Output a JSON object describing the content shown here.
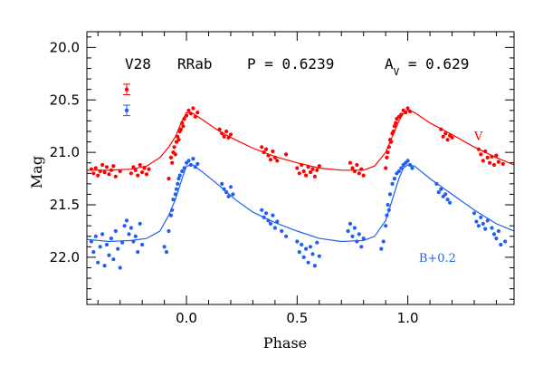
{
  "chart_data": {
    "type": "scatter",
    "title": {
      "star": "V28",
      "type": "RRab",
      "period": "P = 0.6239",
      "amp_base": "A",
      "amp_sub": "V",
      "amp_value": " = 0.629"
    },
    "xlabel": "Phase",
    "ylabel": "Mag",
    "xlim": [
      -0.45,
      1.48
    ],
    "ylim": [
      22.45,
      19.85
    ],
    "x_ticks": [
      {
        "value": 0.0,
        "label": "0.0"
      },
      {
        "value": 0.5,
        "label": "0.5"
      },
      {
        "value": 1.0,
        "label": "1.0"
      }
    ],
    "y_ticks": [
      {
        "value": 20.0,
        "label": "20.0"
      },
      {
        "value": 20.5,
        "label": "20.5"
      },
      {
        "value": 21.0,
        "label": "21.0"
      },
      {
        "value": 21.5,
        "label": "21.5"
      },
      {
        "value": 22.0,
        "label": "22.0"
      }
    ],
    "error_bars": [
      {
        "series": "V",
        "x": -0.27,
        "y": 20.4,
        "err": 0.05
      },
      {
        "series": "B",
        "x": -0.27,
        "y": 20.6,
        "err": 0.05
      }
    ],
    "series": [
      {
        "name": "V",
        "color": "#ff0000",
        "label_x": 1.3,
        "label_y": 20.84,
        "curve": [
          [
            -0.45,
            21.17
          ],
          [
            -0.35,
            21.17
          ],
          [
            -0.25,
            21.16
          ],
          [
            -0.18,
            21.13
          ],
          [
            -0.12,
            21.05
          ],
          [
            -0.08,
            20.95
          ],
          [
            -0.05,
            20.85
          ],
          [
            -0.02,
            20.7
          ],
          [
            0.0,
            20.62
          ],
          [
            0.03,
            20.63
          ],
          [
            0.08,
            20.7
          ],
          [
            0.15,
            20.8
          ],
          [
            0.22,
            20.88
          ],
          [
            0.3,
            20.96
          ],
          [
            0.4,
            21.04
          ],
          [
            0.5,
            21.1
          ],
          [
            0.6,
            21.15
          ],
          [
            0.7,
            21.17
          ],
          [
            0.8,
            21.17
          ],
          [
            0.85,
            21.13
          ],
          [
            0.9,
            21.0
          ],
          [
            0.93,
            20.85
          ],
          [
            0.96,
            20.7
          ],
          [
            0.98,
            20.63
          ],
          [
            1.0,
            20.6
          ],
          [
            1.03,
            20.62
          ],
          [
            1.1,
            20.72
          ],
          [
            1.2,
            20.83
          ],
          [
            1.3,
            20.95
          ],
          [
            1.4,
            21.05
          ],
          [
            1.48,
            21.12
          ]
        ],
        "points": [
          [
            -0.43,
            21.16
          ],
          [
            -0.42,
            21.2
          ],
          [
            -0.41,
            21.15
          ],
          [
            -0.4,
            21.22
          ],
          [
            -0.39,
            21.18
          ],
          [
            -0.38,
            21.12
          ],
          [
            -0.37,
            21.19
          ],
          [
            -0.36,
            21.14
          ],
          [
            -0.35,
            21.21
          ],
          [
            -0.34,
            21.17
          ],
          [
            -0.33,
            21.13
          ],
          [
            -0.32,
            21.23
          ],
          [
            -0.3,
            21.18
          ],
          [
            -0.25,
            21.2
          ],
          [
            -0.24,
            21.14
          ],
          [
            -0.23,
            21.17
          ],
          [
            -0.22,
            21.22
          ],
          [
            -0.21,
            21.12
          ],
          [
            -0.2,
            21.19
          ],
          [
            -0.19,
            21.15
          ],
          [
            -0.18,
            21.21
          ],
          [
            -0.17,
            21.16
          ],
          [
            -0.08,
            21.25
          ],
          [
            -0.07,
            21.05
          ],
          [
            -0.065,
            21.1
          ],
          [
            -0.06,
            21.0
          ],
          [
            -0.055,
            20.95
          ],
          [
            -0.05,
            21.02
          ],
          [
            -0.045,
            20.9
          ],
          [
            -0.04,
            20.85
          ],
          [
            -0.035,
            20.88
          ],
          [
            -0.03,
            20.8
          ],
          [
            -0.025,
            20.78
          ],
          [
            -0.02,
            20.72
          ],
          [
            -0.015,
            20.75
          ],
          [
            -0.01,
            20.68
          ],
          [
            0.0,
            20.65
          ],
          [
            0.01,
            20.6
          ],
          [
            0.02,
            20.63
          ],
          [
            0.03,
            20.58
          ],
          [
            0.04,
            20.66
          ],
          [
            0.05,
            20.62
          ],
          [
            0.15,
            20.78
          ],
          [
            0.16,
            20.82
          ],
          [
            0.17,
            20.85
          ],
          [
            0.18,
            20.8
          ],
          [
            0.19,
            20.86
          ],
          [
            0.2,
            20.83
          ],
          [
            0.34,
            20.95
          ],
          [
            0.35,
            21.0
          ],
          [
            0.36,
            20.97
          ],
          [
            0.37,
            21.03
          ],
          [
            0.38,
            21.07
          ],
          [
            0.39,
            20.99
          ],
          [
            0.4,
            21.05
          ],
          [
            0.41,
            21.08
          ],
          [
            0.45,
            21.02
          ],
          [
            0.5,
            21.15
          ],
          [
            0.51,
            21.2
          ],
          [
            0.52,
            21.12
          ],
          [
            0.53,
            21.18
          ],
          [
            0.54,
            21.22
          ],
          [
            0.55,
            21.14
          ],
          [
            0.56,
            21.19
          ],
          [
            0.57,
            21.16
          ],
          [
            0.58,
            21.23
          ],
          [
            0.59,
            21.17
          ],
          [
            0.6,
            21.13
          ],
          [
            0.74,
            21.1
          ],
          [
            0.75,
            21.15
          ],
          [
            0.76,
            21.18
          ],
          [
            0.77,
            21.12
          ],
          [
            0.78,
            21.2
          ],
          [
            0.79,
            21.16
          ],
          [
            0.8,
            21.22
          ],
          [
            0.9,
            21.15
          ],
          [
            0.905,
            21.05
          ],
          [
            0.91,
            21.0
          ],
          [
            0.915,
            20.95
          ],
          [
            0.92,
            20.88
          ],
          [
            0.925,
            20.9
          ],
          [
            0.93,
            20.82
          ],
          [
            0.935,
            20.8
          ],
          [
            0.94,
            20.75
          ],
          [
            0.945,
            20.72
          ],
          [
            0.95,
            20.68
          ],
          [
            0.96,
            20.66
          ],
          [
            0.97,
            20.64
          ],
          [
            0.98,
            20.6
          ],
          [
            0.99,
            20.62
          ],
          [
            1.0,
            20.58
          ],
          [
            1.01,
            20.61
          ],
          [
            1.15,
            20.78
          ],
          [
            1.16,
            20.85
          ],
          [
            1.17,
            20.82
          ],
          [
            1.18,
            20.88
          ],
          [
            1.19,
            20.84
          ],
          [
            1.2,
            20.86
          ],
          [
            1.32,
            20.97
          ],
          [
            1.33,
            21.02
          ],
          [
            1.34,
            21.08
          ],
          [
            1.35,
            20.99
          ],
          [
            1.36,
            21.05
          ],
          [
            1.37,
            21.1
          ],
          [
            1.38,
            21.04
          ],
          [
            1.39,
            21.12
          ],
          [
            1.4,
            21.03
          ],
          [
            1.41,
            21.09
          ],
          [
            1.43,
            21.11
          ]
        ]
      },
      {
        "name": "B+0.2",
        "color": "#1f5ff5",
        "label_x": 1.05,
        "label_y": 22.0,
        "curve": [
          [
            -0.45,
            21.83
          ],
          [
            -0.35,
            21.85
          ],
          [
            -0.25,
            21.84
          ],
          [
            -0.18,
            21.82
          ],
          [
            -0.12,
            21.75
          ],
          [
            -0.08,
            21.6
          ],
          [
            -0.05,
            21.45
          ],
          [
            -0.02,
            21.25
          ],
          [
            0.0,
            21.13
          ],
          [
            0.03,
            21.12
          ],
          [
            0.08,
            21.2
          ],
          [
            0.15,
            21.32
          ],
          [
            0.22,
            21.45
          ],
          [
            0.3,
            21.57
          ],
          [
            0.4,
            21.67
          ],
          [
            0.5,
            21.75
          ],
          [
            0.6,
            21.82
          ],
          [
            0.7,
            21.85
          ],
          [
            0.8,
            21.84
          ],
          [
            0.85,
            21.8
          ],
          [
            0.9,
            21.65
          ],
          [
            0.93,
            21.45
          ],
          [
            0.96,
            21.25
          ],
          [
            0.98,
            21.15
          ],
          [
            1.0,
            21.12
          ],
          [
            1.03,
            21.13
          ],
          [
            1.1,
            21.25
          ],
          [
            1.2,
            21.4
          ],
          [
            1.3,
            21.55
          ],
          [
            1.4,
            21.68
          ],
          [
            1.48,
            21.75
          ]
        ],
        "points": [
          [
            -0.43,
            21.85
          ],
          [
            -0.42,
            21.95
          ],
          [
            -0.41,
            21.8
          ],
          [
            -0.4,
            22.05
          ],
          [
            -0.39,
            21.9
          ],
          [
            -0.38,
            21.78
          ],
          [
            -0.37,
            22.08
          ],
          [
            -0.36,
            21.88
          ],
          [
            -0.35,
            21.98
          ],
          [
            -0.34,
            21.82
          ],
          [
            -0.33,
            22.02
          ],
          [
            -0.32,
            21.75
          ],
          [
            -0.31,
            21.92
          ],
          [
            -0.3,
            22.1
          ],
          [
            -0.29,
            21.86
          ],
          [
            -0.28,
            21.7
          ],
          [
            -0.27,
            21.65
          ],
          [
            -0.26,
            21.78
          ],
          [
            -0.25,
            21.72
          ],
          [
            -0.24,
            21.85
          ],
          [
            -0.23,
            21.8
          ],
          [
            -0.22,
            21.95
          ],
          [
            -0.21,
            21.68
          ],
          [
            -0.2,
            21.88
          ],
          [
            -0.1,
            21.9
          ],
          [
            -0.09,
            21.95
          ],
          [
            -0.08,
            21.75
          ],
          [
            -0.07,
            21.6
          ],
          [
            -0.065,
            21.55
          ],
          [
            -0.06,
            21.45
          ],
          [
            -0.05,
            21.4
          ],
          [
            -0.045,
            21.35
          ],
          [
            -0.04,
            21.3
          ],
          [
            -0.035,
            21.25
          ],
          [
            -0.03,
            21.22
          ],
          [
            -0.02,
            21.18
          ],
          [
            -0.01,
            21.15
          ],
          [
            0.0,
            21.1
          ],
          [
            0.01,
            21.08
          ],
          [
            0.02,
            21.12
          ],
          [
            0.03,
            21.06
          ],
          [
            0.04,
            21.14
          ],
          [
            0.05,
            21.11
          ],
          [
            0.16,
            21.3
          ],
          [
            0.17,
            21.35
          ],
          [
            0.18,
            21.38
          ],
          [
            0.19,
            21.42
          ],
          [
            0.2,
            21.33
          ],
          [
            0.21,
            21.4
          ],
          [
            0.34,
            21.55
          ],
          [
            0.35,
            21.62
          ],
          [
            0.36,
            21.58
          ],
          [
            0.37,
            21.65
          ],
          [
            0.38,
            21.68
          ],
          [
            0.39,
            21.6
          ],
          [
            0.4,
            21.72
          ],
          [
            0.41,
            21.66
          ],
          [
            0.43,
            21.75
          ],
          [
            0.45,
            21.8
          ],
          [
            0.5,
            21.85
          ],
          [
            0.51,
            21.95
          ],
          [
            0.52,
            21.88
          ],
          [
            0.53,
            22.0
          ],
          [
            0.54,
            21.92
          ],
          [
            0.55,
            22.05
          ],
          [
            0.56,
            21.9
          ],
          [
            0.57,
            21.97
          ],
          [
            0.58,
            22.08
          ],
          [
            0.59,
            21.86
          ],
          [
            0.6,
            21.99
          ],
          [
            0.73,
            21.75
          ],
          [
            0.74,
            21.68
          ],
          [
            0.75,
            21.8
          ],
          [
            0.76,
            21.72
          ],
          [
            0.77,
            21.85
          ],
          [
            0.78,
            21.78
          ],
          [
            0.79,
            21.9
          ],
          [
            0.8,
            21.82
          ],
          [
            0.88,
            21.92
          ],
          [
            0.89,
            21.85
          ],
          [
            0.9,
            21.7
          ],
          [
            0.905,
            21.6
          ],
          [
            0.91,
            21.5
          ],
          [
            0.915,
            21.55
          ],
          [
            0.92,
            21.4
          ],
          [
            0.93,
            21.3
          ],
          [
            0.94,
            21.25
          ],
          [
            0.95,
            21.2
          ],
          [
            0.96,
            21.18
          ],
          [
            0.97,
            21.15
          ],
          [
            0.98,
            21.12
          ],
          [
            0.99,
            21.1
          ],
          [
            1.0,
            21.08
          ],
          [
            1.01,
            21.12
          ],
          [
            1.02,
            21.15
          ],
          [
            1.13,
            21.3
          ],
          [
            1.14,
            21.38
          ],
          [
            1.15,
            21.35
          ],
          [
            1.16,
            21.42
          ],
          [
            1.17,
            21.4
          ],
          [
            1.18,
            21.45
          ],
          [
            1.19,
            21.48
          ],
          [
            1.3,
            21.58
          ],
          [
            1.31,
            21.66
          ],
          [
            1.32,
            21.7
          ],
          [
            1.33,
            21.62
          ],
          [
            1.34,
            21.68
          ],
          [
            1.35,
            21.73
          ],
          [
            1.36,
            21.65
          ],
          [
            1.38,
            21.72
          ],
          [
            1.39,
            21.78
          ],
          [
            1.4,
            21.82
          ],
          [
            1.41,
            21.75
          ],
          [
            1.42,
            21.88
          ],
          [
            1.44,
            21.85
          ]
        ]
      }
    ]
  }
}
